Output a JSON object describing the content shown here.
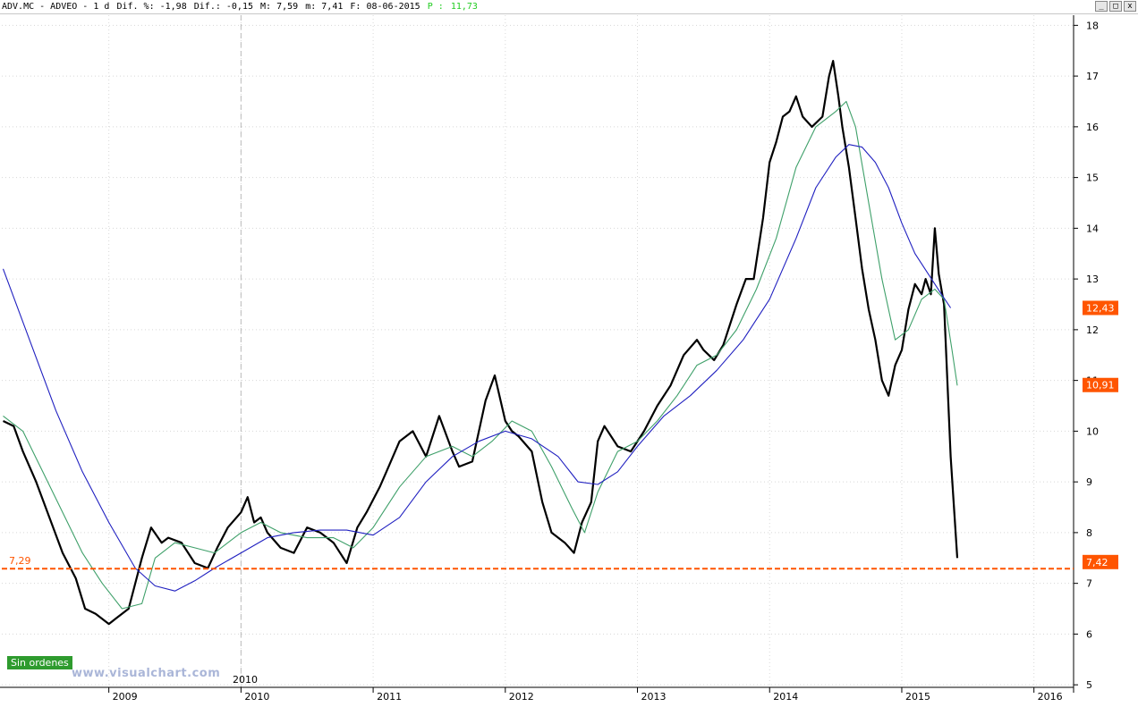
{
  "header": {
    "ticker": "ADV.MC - ADVEO -  1 d",
    "dif_pct": "Dif. %: -1,98",
    "dif": "Dif.: -0,15",
    "max": "M: 7,59",
    "min": "m: 7,41",
    "date": "F: 08-06-2015",
    "p_label": "P :",
    "p_value": "11,73"
  },
  "window_buttons": {
    "minimize": "_",
    "maximize": "□",
    "close": "x"
  },
  "badges": {
    "sin_ordenes": "Sin ordenes",
    "watermark": "www.visualchart.com",
    "year_tag": "2010"
  },
  "chart_data": {
    "type": "line",
    "title": "",
    "xlabel": "",
    "ylabel": "",
    "x_range": [
      2008.19,
      2016.3
    ],
    "ylim": [
      4.95,
      18.2
    ],
    "y_ticks": [
      5,
      6,
      7,
      8,
      9,
      10,
      11,
      12,
      13,
      14,
      15,
      16,
      17,
      18
    ],
    "x_ticks": [
      "2009",
      "2010",
      "2011",
      "2012",
      "2013",
      "2014",
      "2015",
      "2016"
    ],
    "x_tick_values": [
      2009,
      2010,
      2011,
      2012,
      2013,
      2014,
      2015,
      2016
    ],
    "grid": true,
    "horizontal_line": {
      "value": 7.29,
      "label": "7,29",
      "color": "#ff5500"
    },
    "price_tags": [
      {
        "value": 12.43,
        "label": "12,43",
        "color": "#ff5500"
      },
      {
        "value": 10.91,
        "label": "10,91",
        "color": "#ff5500"
      },
      {
        "value": 7.42,
        "label": "7,42",
        "color": "#ff5500"
      }
    ],
    "series": [
      {
        "role": "price",
        "color": "#000000",
        "x": [
          2008.2,
          2008.28,
          2008.35,
          2008.45,
          2008.55,
          2008.65,
          2008.75,
          2008.82,
          2008.9,
          2009.0,
          2009.05,
          2009.15,
          2009.25,
          2009.32,
          2009.4,
          2009.45,
          2009.55,
          2009.65,
          2009.75,
          2009.82,
          2009.9,
          2010.0,
          2010.05,
          2010.1,
          2010.15,
          2010.2,
          2010.3,
          2010.4,
          2010.5,
          2010.6,
          2010.7,
          2010.8,
          2010.88,
          2010.95,
          2011.05,
          2011.1,
          2011.2,
          2011.3,
          2011.4,
          2011.5,
          2011.6,
          2011.65,
          2011.75,
          2011.85,
          2011.92,
          2012.0,
          2012.05,
          2012.1,
          2012.2,
          2012.28,
          2012.35,
          2012.45,
          2012.52,
          2012.58,
          2012.65,
          2012.7,
          2012.75,
          2012.85,
          2012.95,
          2013.05,
          2013.15,
          2013.25,
          2013.35,
          2013.45,
          2013.5,
          2013.58,
          2013.65,
          2013.75,
          2013.82,
          2013.88,
          2013.95,
          2014.0,
          2014.05,
          2014.1,
          2014.15,
          2014.2,
          2014.25,
          2014.32,
          2014.4,
          2014.45,
          2014.48,
          2014.52,
          2014.55,
          2014.6,
          2014.65,
          2014.7,
          2014.75,
          2014.8,
          2014.85,
          2014.9,
          2014.95,
          2015.0,
          2015.05,
          2015.1,
          2015.15,
          2015.18,
          2015.22,
          2015.25,
          2015.28,
          2015.32,
          2015.37,
          2015.42
        ],
        "values": [
          10.2,
          10.1,
          9.6,
          9.0,
          8.3,
          7.6,
          7.1,
          6.5,
          6.4,
          6.2,
          6.3,
          6.5,
          7.5,
          8.1,
          7.8,
          7.9,
          7.8,
          7.4,
          7.3,
          7.7,
          8.1,
          8.4,
          8.7,
          8.2,
          8.3,
          8.0,
          7.7,
          7.6,
          8.1,
          8.0,
          7.8,
          7.4,
          8.1,
          8.4,
          8.9,
          9.2,
          9.8,
          10.0,
          9.5,
          10.3,
          9.6,
          9.3,
          9.4,
          10.6,
          11.1,
          10.2,
          10.0,
          9.9,
          9.6,
          8.6,
          8.0,
          7.8,
          7.6,
          8.2,
          8.6,
          9.8,
          10.1,
          9.7,
          9.6,
          10.0,
          10.5,
          10.9,
          11.5,
          11.8,
          11.6,
          11.4,
          11.7,
          12.5,
          13.0,
          13.0,
          14.2,
          15.3,
          15.7,
          16.2,
          16.3,
          16.6,
          16.2,
          16.0,
          16.2,
          17.0,
          17.3,
          16.6,
          16.0,
          15.2,
          14.2,
          13.2,
          12.4,
          11.8,
          11.0,
          10.7,
          11.3,
          11.6,
          12.4,
          12.9,
          12.7,
          13.0,
          12.7,
          14.0,
          13.1,
          12.5,
          9.5,
          7.5
        ]
      },
      {
        "role": "fast-average",
        "color": "#3fa06a",
        "x": [
          2008.2,
          2008.35,
          2008.5,
          2008.65,
          2008.8,
          2008.95,
          2009.1,
          2009.25,
          2009.35,
          2009.5,
          2009.65,
          2009.8,
          2010.0,
          2010.15,
          2010.3,
          2010.5,
          2010.7,
          2010.85,
          2011.0,
          2011.2,
          2011.4,
          2011.6,
          2011.75,
          2011.9,
          2012.05,
          2012.2,
          2012.35,
          2012.5,
          2012.6,
          2012.7,
          2012.85,
          2013.0,
          2013.15,
          2013.3,
          2013.45,
          2013.6,
          2013.75,
          2013.9,
          2014.05,
          2014.2,
          2014.35,
          2014.5,
          2014.58,
          2014.65,
          2014.75,
          2014.85,
          2014.95,
          2015.05,
          2015.15,
          2015.25,
          2015.32,
          2015.38,
          2015.42
        ],
        "values": [
          10.3,
          10.0,
          9.2,
          8.4,
          7.6,
          7.0,
          6.5,
          6.6,
          7.5,
          7.8,
          7.7,
          7.6,
          8.0,
          8.2,
          8.0,
          7.9,
          7.9,
          7.7,
          8.1,
          8.9,
          9.5,
          9.7,
          9.5,
          9.8,
          10.2,
          10.0,
          9.3,
          8.5,
          8.0,
          8.8,
          9.6,
          9.8,
          10.2,
          10.7,
          11.3,
          11.5,
          12.0,
          12.8,
          13.8,
          15.2,
          16.0,
          16.3,
          16.5,
          16.0,
          14.5,
          13.0,
          11.8,
          12.0,
          12.6,
          12.8,
          12.6,
          11.6,
          10.9
        ]
      },
      {
        "role": "slow-average",
        "color": "#2020c0",
        "x": [
          2008.2,
          2008.4,
          2008.6,
          2008.8,
          2009.0,
          2009.2,
          2009.35,
          2009.5,
          2009.65,
          2009.8,
          2010.0,
          2010.2,
          2010.4,
          2010.6,
          2010.8,
          2011.0,
          2011.2,
          2011.4,
          2011.6,
          2011.8,
          2012.0,
          2012.2,
          2012.4,
          2012.55,
          2012.7,
          2012.85,
          2013.0,
          2013.2,
          2013.4,
          2013.6,
          2013.8,
          2014.0,
          2014.2,
          2014.35,
          2014.5,
          2014.6,
          2014.7,
          2014.8,
          2014.9,
          2015.0,
          2015.1,
          2015.2,
          2015.3,
          2015.37
        ],
        "values": [
          13.2,
          11.8,
          10.4,
          9.2,
          8.2,
          7.3,
          6.95,
          6.85,
          7.05,
          7.3,
          7.6,
          7.9,
          8.0,
          8.05,
          8.05,
          7.95,
          8.3,
          9.0,
          9.5,
          9.8,
          10.0,
          9.85,
          9.5,
          9.0,
          8.95,
          9.2,
          9.7,
          10.3,
          10.7,
          11.2,
          11.8,
          12.6,
          13.8,
          14.8,
          15.4,
          15.65,
          15.6,
          15.3,
          14.8,
          14.1,
          13.5,
          13.1,
          12.7,
          12.43
        ]
      }
    ]
  }
}
